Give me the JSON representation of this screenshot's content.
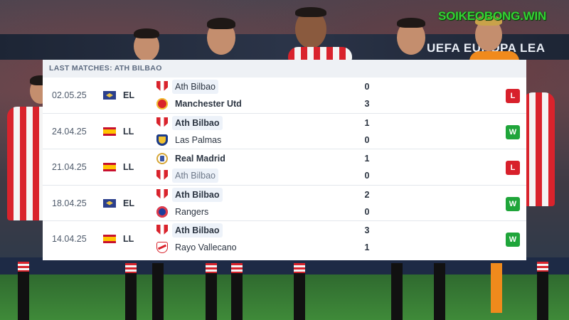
{
  "watermark": "SOIKEOBONG.WIN",
  "background": {
    "banner_text": "UEFA EUROPA LEA"
  },
  "panel": {
    "title": "LAST MATCHES: ATH BILBAO",
    "matches": [
      {
        "date": "02.05.25",
        "competition": "EL",
        "flag": "europa-league-flag",
        "home": {
          "name": "Ath Bilbao",
          "crest": "ath-bilbao-crest",
          "score": "0"
        },
        "away": {
          "name": "Manchester Utd",
          "crest": "manchester-utd-crest",
          "score": "3"
        },
        "result": "L"
      },
      {
        "date": "24.04.25",
        "competition": "LL",
        "flag": "spain-flag",
        "home": {
          "name": "Ath Bilbao",
          "crest": "ath-bilbao-crest",
          "score": "1"
        },
        "away": {
          "name": "Las Palmas",
          "crest": "las-palmas-crest",
          "score": "0"
        },
        "result": "W"
      },
      {
        "date": "21.04.25",
        "competition": "LL",
        "flag": "spain-flag",
        "home": {
          "name": "Real Madrid",
          "crest": "real-madrid-crest",
          "score": "1"
        },
        "away": {
          "name": "Ath Bilbao",
          "crest": "ath-bilbao-crest",
          "score": "0"
        },
        "result": "L"
      },
      {
        "date": "18.04.25",
        "competition": "EL",
        "flag": "europa-league-flag",
        "home": {
          "name": "Ath Bilbao",
          "crest": "ath-bilbao-crest",
          "score": "2"
        },
        "away": {
          "name": "Rangers",
          "crest": "rangers-crest",
          "score": "0"
        },
        "result": "W"
      },
      {
        "date": "14.04.25",
        "competition": "LL",
        "flag": "spain-flag",
        "home": {
          "name": "Ath Bilbao",
          "crest": "ath-bilbao-crest",
          "score": "3"
        },
        "away": {
          "name": "Rayo Vallecano",
          "crest": "rayo-vallecano-crest",
          "score": "1"
        },
        "result": "W"
      }
    ]
  },
  "colors": {
    "win": "#1fa53a",
    "loss": "#d8202b",
    "header_bg": "#eef1f5",
    "highlight_bg": "#edf2f9",
    "watermark": "#33d233"
  }
}
